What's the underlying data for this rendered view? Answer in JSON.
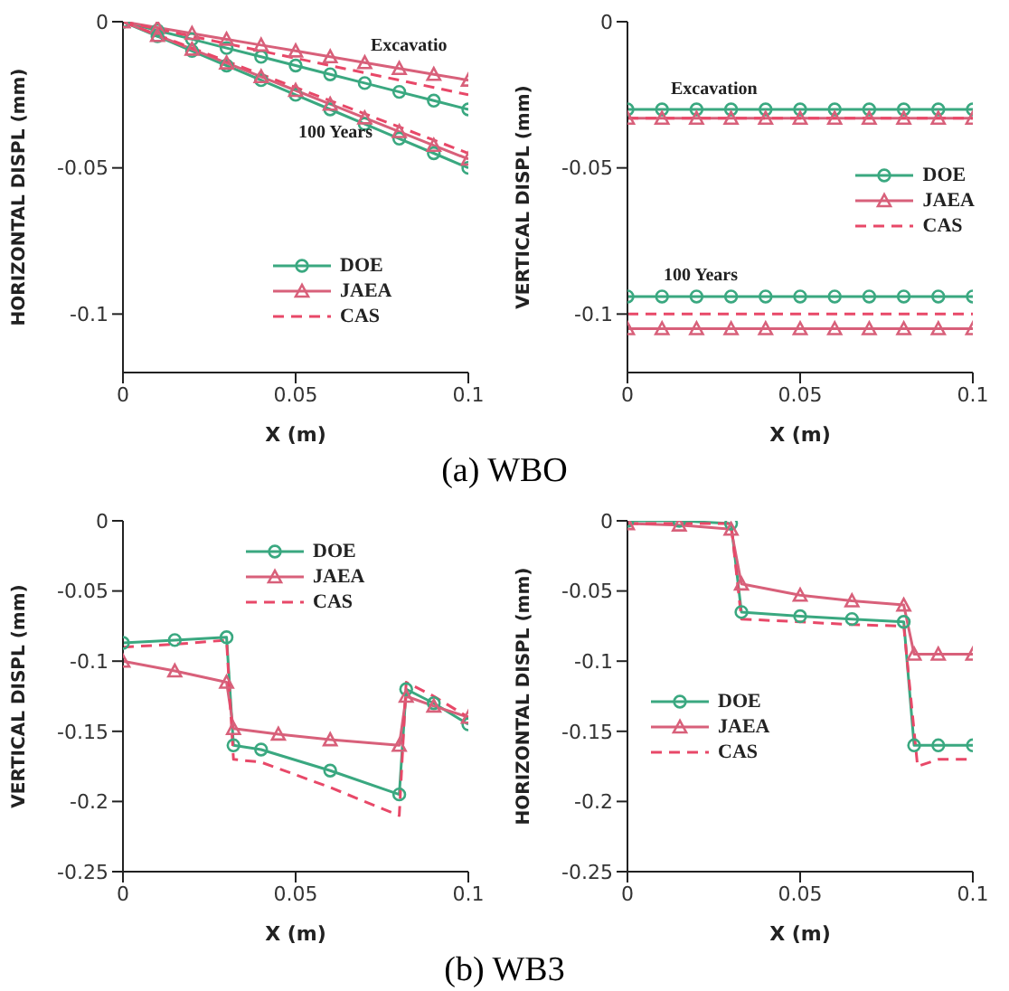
{
  "chart_data": [
    {
      "type": "line",
      "xlabel": "X (m)",
      "ylabel": "HORIZONTAL DISPL (mm)",
      "xlim": [
        0,
        0.1
      ],
      "xticks": [
        0,
        0.05,
        0.1
      ],
      "ylim": [
        -0.12,
        0
      ],
      "yticks": [
        0,
        -0.05,
        -0.1
      ],
      "legend": "bottom right",
      "title": "(a) WBO",
      "annotations": [
        "Excavatio",
        "100 Years"
      ],
      "series": [
        {
          "name": "DOE",
          "color": "#3aa880",
          "marker": "circle",
          "line_style": "solid",
          "x": [
            0,
            0.01,
            0.02,
            0.03,
            0.04,
            0.05,
            0.06,
            0.07,
            0.08,
            0.09,
            0.1
          ],
          "values": [
            0,
            -0.003,
            -0.006,
            -0.009,
            -0.012,
            -0.015,
            -0.018,
            -0.021,
            -0.024,
            -0.027,
            -0.03
          ]
        },
        {
          "name": "JAEA",
          "color": "#d8607a",
          "marker": "triangle",
          "line_style": "solid",
          "x": [
            0,
            0.01,
            0.02,
            0.03,
            0.04,
            0.05,
            0.06,
            0.07,
            0.08,
            0.09,
            0.1
          ],
          "values": [
            0,
            -0.002,
            -0.004,
            -0.006,
            -0.008,
            -0.01,
            -0.012,
            -0.014,
            -0.016,
            -0.018,
            -0.02
          ]
        },
        {
          "name": "CAS",
          "color": "#e84868",
          "marker": "none",
          "line_style": "dashed",
          "x": [
            0,
            0.01,
            0.02,
            0.03,
            0.04,
            0.05,
            0.06,
            0.07,
            0.08,
            0.09,
            0.1
          ],
          "values": [
            0,
            -0.0025,
            -0.005,
            -0.0075,
            -0.01,
            -0.0125,
            -0.015,
            -0.0175,
            -0.02,
            -0.0225,
            -0.025
          ]
        },
        {
          "color": "#3aa880",
          "marker": "circle",
          "line_style": "solid",
          "x": [
            0,
            0.01,
            0.02,
            0.03,
            0.04,
            0.05,
            0.06,
            0.07,
            0.08,
            0.09,
            0.1
          ],
          "values": [
            0,
            -0.005,
            -0.01,
            -0.015,
            -0.02,
            -0.025,
            -0.03,
            -0.035,
            -0.04,
            -0.045,
            -0.05
          ]
        },
        {
          "color": "#d8607a",
          "marker": "triangle",
          "line_style": "solid",
          "x": [
            0,
            0.01,
            0.02,
            0.03,
            0.04,
            0.05,
            0.06,
            0.07,
            0.08,
            0.09,
            0.1
          ],
          "values": [
            0,
            -0.0047,
            -0.0094,
            -0.0141,
            -0.0188,
            -0.0235,
            -0.0282,
            -0.0329,
            -0.0376,
            -0.0423,
            -0.047
          ]
        },
        {
          "color": "#e84868",
          "marker": "none",
          "line_style": "dashed",
          "x": [
            0,
            0.01,
            0.02,
            0.03,
            0.04,
            0.05,
            0.06,
            0.07,
            0.08,
            0.09,
            0.1
          ],
          "values": [
            0,
            -0.0045,
            -0.009,
            -0.0135,
            -0.018,
            -0.0225,
            -0.027,
            -0.0315,
            -0.036,
            -0.0405,
            -0.045
          ]
        }
      ]
    },
    {
      "type": "line",
      "xlabel": "X (m)",
      "ylabel": "VERTICAL DISPL (mm)",
      "xlim": [
        0,
        0.1
      ],
      "xticks": [
        0,
        0.05,
        0.1
      ],
      "ylim": [
        -0.12,
        0
      ],
      "yticks": [
        0,
        -0.05,
        -0.1
      ],
      "legend": "right",
      "annotations": [
        "Excavation",
        "100 Years"
      ],
      "series": [
        {
          "name": "DOE",
          "color": "#3aa880",
          "marker": "circle",
          "line_style": "solid",
          "x": [
            0,
            0.01,
            0.02,
            0.03,
            0.04,
            0.05,
            0.06,
            0.07,
            0.08,
            0.09,
            0.1
          ],
          "values": [
            -0.03,
            -0.03,
            -0.03,
            -0.03,
            -0.03,
            -0.03,
            -0.03,
            -0.03,
            -0.03,
            -0.03,
            -0.03
          ]
        },
        {
          "name": "JAEA",
          "color": "#d8607a",
          "marker": "triangle",
          "line_style": "solid",
          "x": [
            0,
            0.01,
            0.02,
            0.03,
            0.04,
            0.05,
            0.06,
            0.07,
            0.08,
            0.09,
            0.1
          ],
          "values": [
            -0.033,
            -0.033,
            -0.033,
            -0.033,
            -0.033,
            -0.033,
            -0.033,
            -0.033,
            -0.033,
            -0.033,
            -0.033
          ]
        },
        {
          "name": "CAS",
          "color": "#e84868",
          "marker": "none",
          "line_style": "dashed",
          "x": [
            0,
            0.1
          ],
          "values": [
            -0.033,
            -0.033
          ]
        },
        {
          "color": "#3aa880",
          "marker": "circle",
          "line_style": "solid",
          "x": [
            0,
            0.01,
            0.02,
            0.03,
            0.04,
            0.05,
            0.06,
            0.07,
            0.08,
            0.09,
            0.1
          ],
          "values": [
            -0.094,
            -0.094,
            -0.094,
            -0.094,
            -0.094,
            -0.094,
            -0.094,
            -0.094,
            -0.094,
            -0.094,
            -0.094
          ]
        },
        {
          "color": "#d8607a",
          "marker": "triangle",
          "line_style": "solid",
          "x": [
            0,
            0.01,
            0.02,
            0.03,
            0.04,
            0.05,
            0.06,
            0.07,
            0.08,
            0.09,
            0.1
          ],
          "values": [
            -0.105,
            -0.105,
            -0.105,
            -0.105,
            -0.105,
            -0.105,
            -0.105,
            -0.105,
            -0.105,
            -0.105,
            -0.105
          ]
        },
        {
          "color": "#e84868",
          "marker": "none",
          "line_style": "dashed",
          "x": [
            0,
            0.1
          ],
          "values": [
            -0.1,
            -0.1
          ]
        }
      ]
    },
    {
      "type": "line",
      "xlabel": "X (m)",
      "ylabel": "VERTICAL DISPL (mm)",
      "xlim": [
        0,
        0.1
      ],
      "xticks": [
        0,
        0.05,
        0.1
      ],
      "ylim": [
        -0.25,
        0
      ],
      "yticks": [
        0,
        -0.05,
        -0.1,
        -0.15,
        -0.2,
        -0.25
      ],
      "legend": "top",
      "title": "(b) WB3",
      "series": [
        {
          "name": "DOE",
          "color": "#3aa880",
          "marker": "circle",
          "line_style": "solid",
          "x": [
            0,
            0.015,
            0.03,
            0.032,
            0.04,
            0.06,
            0.08,
            0.082,
            0.09,
            0.1
          ],
          "values": [
            -0.087,
            -0.085,
            -0.083,
            -0.16,
            -0.163,
            -0.178,
            -0.195,
            -0.12,
            -0.13,
            -0.145
          ]
        },
        {
          "name": "JAEA",
          "color": "#d8607a",
          "marker": "triangle",
          "line_style": "solid",
          "x": [
            0,
            0.015,
            0.03,
            0.032,
            0.045,
            0.06,
            0.08,
            0.082,
            0.09,
            0.1
          ],
          "values": [
            -0.1,
            -0.107,
            -0.115,
            -0.148,
            -0.152,
            -0.156,
            -0.16,
            -0.125,
            -0.132,
            -0.14
          ]
        },
        {
          "name": "CAS",
          "color": "#e84868",
          "marker": "none",
          "line_style": "dashed",
          "x": [
            0,
            0.015,
            0.03,
            0.032,
            0.04,
            0.06,
            0.08,
            0.082,
            0.09,
            0.1
          ],
          "values": [
            -0.09,
            -0.088,
            -0.085,
            -0.17,
            -0.172,
            -0.19,
            -0.21,
            -0.115,
            -0.125,
            -0.14
          ]
        }
      ]
    },
    {
      "type": "line",
      "xlabel": "X (m)",
      "ylabel": "HORIZONTAL DISPL (mm)",
      "xlim": [
        0,
        0.1
      ],
      "xticks": [
        0,
        0.05,
        0.1
      ],
      "ylim": [
        -0.25,
        0
      ],
      "yticks": [
        0,
        -0.05,
        -0.1,
        -0.15,
        -0.2,
        -0.25
      ],
      "legend": "left",
      "series": [
        {
          "name": "DOE",
          "color": "#3aa880",
          "marker": "circle",
          "line_style": "solid",
          "x": [
            0,
            0.015,
            0.03,
            0.033,
            0.05,
            0.065,
            0.08,
            0.083,
            0.09,
            0.1
          ],
          "values": [
            0,
            0,
            -0.002,
            -0.065,
            -0.068,
            -0.07,
            -0.072,
            -0.16,
            -0.16,
            -0.16
          ]
        },
        {
          "name": "JAEA",
          "color": "#d8607a",
          "marker": "triangle",
          "line_style": "solid",
          "x": [
            0,
            0.015,
            0.03,
            0.033,
            0.05,
            0.065,
            0.08,
            0.083,
            0.09,
            0.1
          ],
          "values": [
            -0.002,
            -0.003,
            -0.006,
            -0.045,
            -0.053,
            -0.057,
            -0.06,
            -0.095,
            -0.095,
            -0.095
          ]
        },
        {
          "name": "CAS",
          "color": "#e84868",
          "marker": "none",
          "line_style": "dashed",
          "x": [
            0,
            0.015,
            0.03,
            0.033,
            0.05,
            0.065,
            0.08,
            0.084,
            0.09,
            0.1
          ],
          "values": [
            -0.002,
            -0.002,
            -0.002,
            -0.07,
            -0.072,
            -0.074,
            -0.075,
            -0.175,
            -0.17,
            -0.17
          ]
        }
      ]
    }
  ]
}
